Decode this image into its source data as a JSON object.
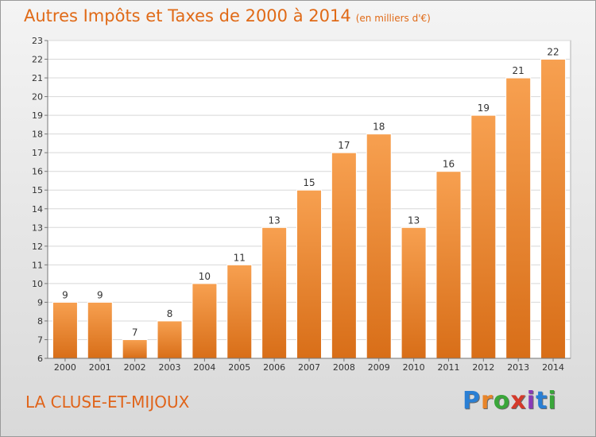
{
  "header": {
    "title": "Autres Impôts et Taxes de 2000 à 2014",
    "subtitle": "(en milliers d'€)"
  },
  "footer": {
    "place": "LA CLUSE-ET-MIJOUX",
    "brand_letters": [
      "P",
      "r",
      "o",
      "x",
      "i",
      "t",
      "i"
    ],
    "brand_colors": [
      "#2a7fd4",
      "#e8852a",
      "#3aa63a",
      "#d43a2a",
      "#8a3ab8",
      "#2a7fd4",
      "#3aa63a"
    ]
  },
  "colors": {
    "bar_top": "#f7a050",
    "bar_bottom": "#d86e18",
    "bar_edge": "#ffffff",
    "title": "#e06a17"
  },
  "chart_data": {
    "type": "bar",
    "title": "Autres Impôts et Taxes de 2000 à 2014",
    "subtitle": "(en milliers d'€)",
    "categories": [
      "2000",
      "2001",
      "2002",
      "2003",
      "2004",
      "2005",
      "2006",
      "2007",
      "2008",
      "2009",
      "2010",
      "2011",
      "2012",
      "2013",
      "2014"
    ],
    "values": [
      9,
      9,
      7,
      8,
      10,
      11,
      13,
      15,
      17,
      18,
      13,
      16,
      19,
      21,
      22
    ],
    "ylim": [
      6,
      23
    ],
    "yticks": [
      6,
      7,
      8,
      9,
      10,
      11,
      12,
      13,
      14,
      15,
      16,
      17,
      18,
      19,
      20,
      21,
      22,
      23
    ],
    "grid": true,
    "data_labels": true
  }
}
